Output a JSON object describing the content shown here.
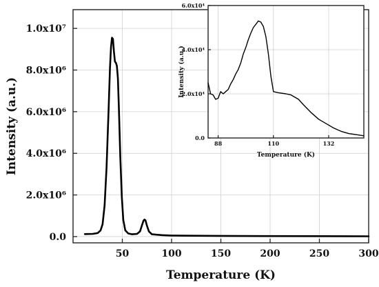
{
  "chart_data": [
    {
      "id": "main",
      "type": "line",
      "xlabel": "Temperature (K)",
      "ylabel": "Intensity (a.u.)",
      "xlim": [
        0,
        300
      ],
      "ylim": [
        -300000,
        10900000
      ],
      "grid": true,
      "xticks": [
        {
          "value": 50,
          "label": "50"
        },
        {
          "value": 100,
          "label": "100"
        },
        {
          "value": 150,
          "label": "150"
        },
        {
          "value": 200,
          "label": "200"
        },
        {
          "value": 250,
          "label": "250"
        },
        {
          "value": 300,
          "label": "300"
        }
      ],
      "yticks": [
        {
          "value": 0,
          "label": "0.0"
        },
        {
          "value": 2000000,
          "label": "2.0x10⁶"
        },
        {
          "value": 4000000,
          "label": "4.0x10⁶"
        },
        {
          "value": 6000000,
          "label": "6.0x10⁶"
        },
        {
          "value": 8000000,
          "label": "8.0x10⁶"
        },
        {
          "value": 10000000,
          "label": "1.0x10⁷"
        }
      ],
      "series": [
        {
          "color": "#000000",
          "points": [
            [
              12,
              120000
            ],
            [
              20,
              130000
            ],
            [
              25,
              170000
            ],
            [
              28,
              300000
            ],
            [
              30,
              600000
            ],
            [
              32,
              1500000
            ],
            [
              34,
              3300000
            ],
            [
              36,
              6000000
            ],
            [
              37.5,
              8100000
            ],
            [
              38.5,
              9100000
            ],
            [
              39.5,
              9550000
            ],
            [
              40.5,
              9500000
            ],
            [
              41.5,
              8900000
            ],
            [
              42.5,
              8400000
            ],
            [
              43.5,
              8350000
            ],
            [
              44.5,
              8200000
            ],
            [
              45.5,
              7600000
            ],
            [
              46.5,
              6200000
            ],
            [
              48,
              3800000
            ],
            [
              49.5,
              1900000
            ],
            [
              51,
              800000
            ],
            [
              53,
              300000
            ],
            [
              56,
              150000
            ],
            [
              60,
              110000
            ],
            [
              65,
              130000
            ],
            [
              68,
              250000
            ],
            [
              70,
              550000
            ],
            [
              71.5,
              760000
            ],
            [
              72.5,
              820000
            ],
            [
              73.5,
              780000
            ],
            [
              75,
              520000
            ],
            [
              77,
              250000
            ],
            [
              80,
              110000
            ],
            [
              90,
              70000
            ],
            [
              100,
              50000
            ],
            [
              110,
              45000
            ],
            [
              150,
              35000
            ],
            [
              200,
              25000
            ],
            [
              250,
              20000
            ],
            [
              300,
              15000
            ]
          ]
        }
      ]
    },
    {
      "id": "inset",
      "type": "line",
      "xlabel": "Temperature (K)",
      "ylabel": "Intensity (a.u.)",
      "xlim": [
        84,
        146
      ],
      "ylim": [
        0,
        60000
      ],
      "grid": true,
      "xticks": [
        {
          "value": 88,
          "label": "88"
        },
        {
          "value": 110,
          "label": "110"
        },
        {
          "value": 132,
          "label": "132"
        }
      ],
      "yticks": [
        {
          "value": 0,
          "label": "0.0"
        },
        {
          "value": 20000,
          "label": "2.0x10⁴"
        },
        {
          "value": 40000,
          "label": "4.0x10⁴"
        },
        {
          "value": 60000,
          "label": "6.0x10⁴"
        }
      ],
      "series": [
        {
          "color": "#000000",
          "points": [
            [
              84,
              25000
            ],
            [
              85,
              20000
            ],
            [
              86,
              19500
            ],
            [
              87,
              17500
            ],
            [
              88,
              18000
            ],
            [
              89,
              21000
            ],
            [
              90,
              20000
            ],
            [
              91,
              21000
            ],
            [
              92,
              22000
            ],
            [
              93,
              24500
            ],
            [
              94,
              26500
            ],
            [
              95,
              29000
            ],
            [
              96,
              31000
            ],
            [
              97,
              34000
            ],
            [
              98,
              38000
            ],
            [
              99,
              41000
            ],
            [
              100,
              44500
            ],
            [
              101,
              47500
            ],
            [
              102,
              50000
            ],
            [
              103,
              51500
            ],
            [
              104,
              53000
            ],
            [
              105,
              52500
            ],
            [
              106,
              50500
            ],
            [
              107,
              46000
            ],
            [
              108,
              38000
            ],
            [
              109,
              28000
            ],
            [
              110,
              21000
            ],
            [
              112,
              20500
            ],
            [
              115,
              20000
            ],
            [
              117,
              19500
            ],
            [
              120,
              17500
            ],
            [
              122,
              15000
            ],
            [
              125,
              11500
            ],
            [
              128,
              8500
            ],
            [
              131,
              6500
            ],
            [
              134,
              4500
            ],
            [
              137,
              3000
            ],
            [
              140,
              2000
            ],
            [
              143,
              1500
            ],
            [
              146,
              1000
            ]
          ]
        }
      ]
    }
  ]
}
